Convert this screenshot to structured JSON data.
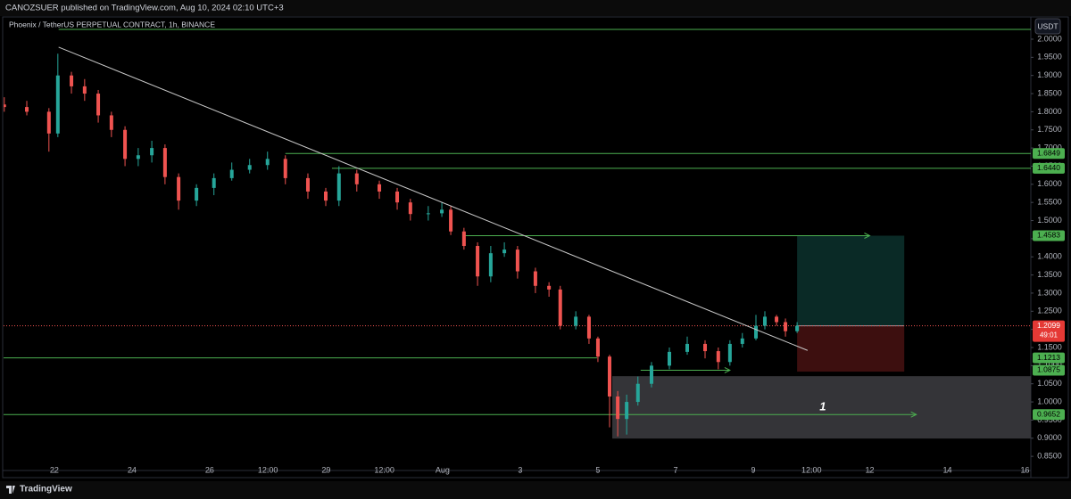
{
  "header": {
    "publisher": "CANOZSUER published on TradingView.com, Aug 10, 2024 02:10 UTC+3"
  },
  "footer": {
    "brand": "TradingView"
  },
  "currency_button": "USDT",
  "chart_data": {
    "type": "candlestick",
    "title": "Phoenix / TetherUS PERPETUAL CONTRACT, 1h, BINANCE",
    "up_color": "#26a69a",
    "down_color": "#ef5350",
    "x": [
      -1.29,
      -0.71,
      -0.14,
      0.09,
      0.44,
      0.78,
      1.13,
      1.47,
      1.82,
      2.16,
      2.51,
      2.85,
      3.2,
      3.66,
      4.11,
      4.57,
      5.03,
      5.49,
      5.95,
      6.53,
      6.99,
      7.33,
      7.79,
      8.37,
      8.83,
      9.17,
      9.63,
      9.98,
      10.21,
      10.55,
      10.9,
      11.24,
      11.59,
      11.93,
      12.39,
      12.74,
      13.03,
      13.43,
      13.77,
      14.0,
      14.3,
      14.51,
      14.74,
      15.03,
      15.38,
      15.84,
      16.3,
      16.76,
      17.1,
      17.4,
      17.72,
      18.07,
      18.3,
      18.6,
      18.83,
      19.13
    ],
    "open": [
      1.82,
      1.813,
      1.8,
      1.74,
      1.9,
      1.87,
      1.85,
      1.79,
      1.75,
      1.67,
      1.68,
      1.7,
      1.62,
      1.555,
      1.59,
      1.617,
      1.64,
      1.653,
      1.67,
      1.617,
      1.58,
      1.555,
      1.63,
      1.6,
      1.58,
      1.55,
      1.518,
      1.52,
      1.53,
      1.47,
      1.43,
      1.346,
      1.41,
      1.42,
      1.36,
      1.32,
      1.31,
      1.21,
      1.235,
      1.175,
      1.125,
      1.015,
      0.953,
      1.0,
      1.05,
      1.1,
      1.138,
      1.16,
      1.14,
      1.11,
      1.16,
      1.175,
      1.21,
      1.235,
      1.22,
      1.195
    ],
    "high": [
      1.84,
      1.83,
      1.81,
      1.96,
      1.91,
      1.89,
      1.86,
      1.8,
      1.76,
      1.7,
      1.72,
      1.71,
      1.63,
      1.6,
      1.63,
      1.66,
      1.67,
      1.69,
      1.68,
      1.63,
      1.59,
      1.65,
      1.64,
      1.61,
      1.59,
      1.56,
      1.54,
      1.55,
      1.54,
      1.48,
      1.44,
      1.43,
      1.44,
      1.43,
      1.37,
      1.33,
      1.32,
      1.25,
      1.24,
      1.18,
      1.13,
      1.03,
      1.02,
      1.07,
      1.11,
      1.15,
      1.18,
      1.17,
      1.15,
      1.17,
      1.19,
      1.24,
      1.25,
      1.24,
      1.23,
      1.22
    ],
    "low": [
      1.8,
      1.79,
      1.69,
      1.73,
      1.85,
      1.83,
      1.77,
      1.73,
      1.65,
      1.65,
      1.66,
      1.6,
      1.53,
      1.54,
      1.57,
      1.61,
      1.63,
      1.64,
      1.6,
      1.56,
      1.54,
      1.54,
      1.58,
      1.56,
      1.53,
      1.5,
      1.5,
      1.51,
      1.46,
      1.42,
      1.32,
      1.33,
      1.4,
      1.34,
      1.3,
      1.29,
      1.2,
      1.2,
      1.16,
      1.11,
      0.93,
      0.905,
      0.91,
      0.99,
      1.04,
      1.09,
      1.13,
      1.12,
      1.09,
      1.1,
      1.15,
      1.17,
      1.2,
      1.21,
      1.18,
      1.19
    ],
    "close": [
      1.813,
      1.8,
      1.74,
      1.9,
      1.87,
      1.85,
      1.79,
      1.75,
      1.67,
      1.68,
      1.7,
      1.62,
      1.555,
      1.59,
      1.617,
      1.64,
      1.653,
      1.67,
      1.617,
      1.58,
      1.555,
      1.63,
      1.6,
      1.58,
      1.55,
      1.518,
      1.52,
      1.53,
      1.47,
      1.43,
      1.346,
      1.41,
      1.42,
      1.36,
      1.32,
      1.31,
      1.21,
      1.235,
      1.175,
      1.125,
      1.015,
      0.953,
      1.0,
      1.05,
      1.1,
      1.138,
      1.16,
      1.14,
      1.11,
      1.16,
      1.175,
      1.21,
      1.235,
      1.22,
      1.195,
      1.2099
    ],
    "countdown": "49:01",
    "xlim": [
      -1.4,
      25.15
    ],
    "xticks": [
      {
        "value": 0,
        "label": "22"
      },
      {
        "value": 2,
        "label": "24"
      },
      {
        "value": 4,
        "label": "26"
      },
      {
        "value": 5.5,
        "label": "12:00"
      },
      {
        "value": 7,
        "label": "29"
      },
      {
        "value": 8.5,
        "label": "12:00"
      },
      {
        "value": 10,
        "label": "Aug"
      },
      {
        "value": 12,
        "label": "3"
      },
      {
        "value": 14,
        "label": "5"
      },
      {
        "value": 16,
        "label": "7"
      },
      {
        "value": 18,
        "label": "9"
      },
      {
        "value": 19.5,
        "label": "12:00"
      },
      {
        "value": 21,
        "label": "12"
      },
      {
        "value": 23,
        "label": "14"
      },
      {
        "value": 25,
        "label": "16"
      }
    ],
    "ylim": [
      0.811,
      2.054
    ],
    "yticks": [
      {
        "value": 0.85,
        "label": "0.8500"
      },
      {
        "value": 0.9,
        "label": "0.9000"
      },
      {
        "value": 0.95,
        "label": "0.9500"
      },
      {
        "value": 1.0,
        "label": "1.0000"
      },
      {
        "value": 1.05,
        "label": "1.0500"
      },
      {
        "value": 1.1,
        "label": "1.1000"
      },
      {
        "value": 1.15,
        "label": "1.1500"
      },
      {
        "value": 1.2,
        "label": "1.2000"
      },
      {
        "value": 1.25,
        "label": "1.2500"
      },
      {
        "value": 1.3,
        "label": "1.3000"
      },
      {
        "value": 1.35,
        "label": "1.3500"
      },
      {
        "value": 1.4,
        "label": "1.4000"
      },
      {
        "value": 1.45,
        "label": "1.4500"
      },
      {
        "value": 1.5,
        "label": "1.5000"
      },
      {
        "value": 1.55,
        "label": "1.5500"
      },
      {
        "value": 1.6,
        "label": "1.6000"
      },
      {
        "value": 1.65,
        "label": "1.6500"
      },
      {
        "value": 1.7,
        "label": "1.7000"
      },
      {
        "value": 1.75,
        "label": "1.7500"
      },
      {
        "value": 1.8,
        "label": "1.8000"
      },
      {
        "value": 1.85,
        "label": "1.8500"
      },
      {
        "value": 1.9,
        "label": "1.9000"
      },
      {
        "value": 1.95,
        "label": "1.9500"
      },
      {
        "value": 2.0,
        "label": "2.0000"
      }
    ],
    "levels": [
      {
        "value": 2.027,
        "from": 0.11,
        "to": 25.15,
        "arrow": false,
        "show_label": false
      },
      {
        "value": 1.6849,
        "from": 5.95,
        "to": 25.15,
        "arrow": false,
        "show_label": true
      },
      {
        "value": 1.644,
        "label": "1.6440",
        "from": 7.15,
        "to": 25.15,
        "arrow": false,
        "show_label": true
      },
      {
        "value": 1.4583,
        "from": 10.55,
        "to": 21.0,
        "arrow": true,
        "show_label": true
      },
      {
        "value": 1.1213,
        "from": -1.4,
        "to": 13.98,
        "arrow": false,
        "show_label": true
      },
      {
        "value": 1.0875,
        "from": 15.1,
        "to": 17.4,
        "arrow": true,
        "show_label": true
      },
      {
        "value": 0.9652,
        "from": -1.4,
        "to": 22.2,
        "arrow": true,
        "show_label": true
      }
    ],
    "level_color": "#4caf50",
    "trendline": {
      "x": [
        0.11,
        19.4
      ],
      "y": [
        1.978,
        1.142
      ]
    },
    "position": {
      "from": 19.13,
      "to": 21.89,
      "entry": 1.2099,
      "target": 1.4583,
      "stop": 1.0835
    },
    "zone": {
      "from": 14.37,
      "to": 25.15,
      "top": 1.071,
      "bottom": 0.899,
      "label": "1",
      "label_x": 19.79,
      "label_y": 0.985
    }
  }
}
